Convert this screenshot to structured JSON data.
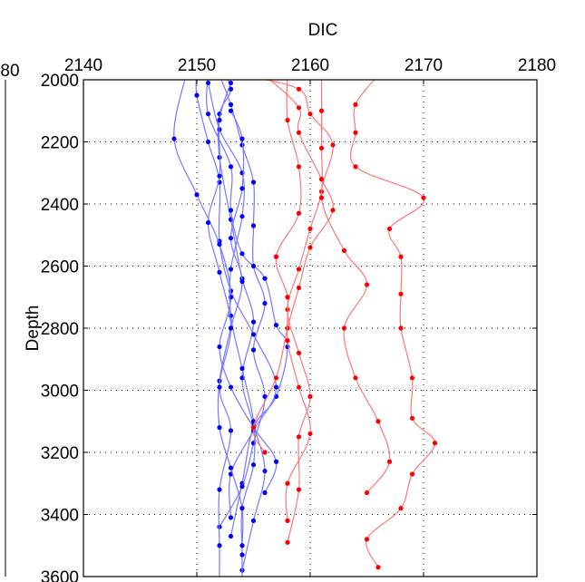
{
  "chart_data": {
    "type": "line",
    "title": "DIC",
    "xlabel": "DIC",
    "ylabel": "Depth",
    "x_axis_position": "top",
    "y_axis_reversed": true,
    "xlim": [
      2140,
      2180
    ],
    "ylim": [
      2000,
      3600
    ],
    "xticks": [
      2140,
      2150,
      2160,
      2170,
      2180
    ],
    "yticks": [
      2000,
      2200,
      2400,
      2600,
      2800,
      3000,
      3200,
      3400,
      3600
    ],
    "partial_left_tick_text": "80",
    "grid": "dotted",
    "colors": {
      "blue_series": "#0000ff",
      "blue_line": "#7777ff",
      "red_series": "#ff0000",
      "red_line": "#ff7777"
    },
    "series": [
      {
        "color_key": "blue",
        "points": [
          [
            2152,
            1960
          ],
          [
            2153,
            2030
          ],
          [
            2152,
            2110
          ],
          [
            2152,
            2250
          ],
          [
            2153,
            2450
          ],
          [
            2154,
            2640
          ],
          [
            2155,
            2780
          ],
          [
            2154,
            2960
          ],
          [
            2155,
            3110
          ],
          [
            2156,
            3260
          ],
          [
            2155,
            3420
          ],
          [
            2154,
            3580
          ]
        ]
      },
      {
        "color_key": "blue",
        "points": [
          [
            2151,
            1980
          ],
          [
            2151,
            2110
          ],
          [
            2153,
            2280
          ],
          [
            2153,
            2420
          ],
          [
            2154,
            2560
          ],
          [
            2156,
            2640
          ],
          [
            2157,
            2790
          ],
          [
            2158,
            2860
          ],
          [
            2157,
            3020
          ],
          [
            2155,
            3120
          ],
          [
            2154,
            3300
          ],
          [
            2153,
            3470
          ]
        ]
      },
      {
        "color_key": "blue",
        "points": [
          [
            2150,
            1980
          ],
          [
            2150,
            2050
          ],
          [
            2151,
            2200
          ],
          [
            2152,
            2330
          ],
          [
            2152,
            2520
          ],
          [
            2153,
            2680
          ],
          [
            2155,
            2820
          ],
          [
            2157,
            2990
          ],
          [
            2155,
            3130
          ],
          [
            2153,
            3270
          ],
          [
            2153,
            3410
          ]
        ]
      },
      {
        "color_key": "blue",
        "points": [
          [
            2149,
            1990
          ],
          [
            2148,
            2190
          ],
          [
            2150,
            2370
          ],
          [
            2152,
            2530
          ],
          [
            2153,
            2700
          ],
          [
            2152,
            2860
          ],
          [
            2153,
            2990
          ],
          [
            2155,
            3120
          ],
          [
            2157,
            3230
          ],
          [
            2156,
            3330
          ]
        ]
      },
      {
        "color_key": "blue",
        "points": [
          [
            2152,
            1985
          ],
          [
            2153,
            2080
          ],
          [
            2154,
            2210
          ],
          [
            2155,
            2330
          ],
          [
            2155,
            2470
          ],
          [
            2155,
            2600
          ],
          [
            2156,
            2720
          ],
          [
            2155,
            2870
          ],
          [
            2156,
            3020
          ],
          [
            2155,
            3170
          ],
          [
            2154,
            3310
          ],
          [
            2152,
            3440
          ]
        ]
      },
      {
        "color_key": "blue",
        "points": [
          [
            2151,
            2010
          ],
          [
            2152,
            2160
          ],
          [
            2154,
            2300
          ],
          [
            2154,
            2440
          ],
          [
            2153,
            2610
          ],
          [
            2153,
            2760
          ],
          [
            2154,
            2930
          ],
          [
            2155,
            3100
          ],
          [
            2155,
            3240
          ],
          [
            2154,
            3380
          ],
          [
            2154,
            3530
          ],
          [
            2154,
            3610
          ]
        ]
      },
      {
        "color_key": "blue",
        "points": [
          [
            2153,
            2100
          ],
          [
            2154,
            2190
          ],
          [
            2154,
            2350
          ],
          [
            2153,
            2510
          ],
          [
            2154,
            2650
          ],
          [
            2153,
            2800
          ],
          [
            2152,
            2970
          ],
          [
            2152,
            3120
          ],
          [
            2153,
            3250
          ],
          [
            2154,
            3380
          ],
          [
            2154,
            3500
          ]
        ]
      },
      {
        "color_key": "blue",
        "points": [
          [
            2153,
            2010
          ],
          [
            2152,
            2130
          ],
          [
            2152,
            2310
          ],
          [
            2151,
            2460
          ],
          [
            2152,
            2620
          ],
          [
            2153,
            2800
          ],
          [
            2152,
            2990
          ],
          [
            2153,
            3130
          ],
          [
            2152,
            3320
          ],
          [
            2152,
            3500
          ],
          [
            2152,
            3620
          ]
        ]
      },
      {
        "color_key": "red",
        "points": [
          [
            2161,
            1990
          ],
          [
            2161,
            2100
          ],
          [
            2161,
            2220
          ],
          [
            2161,
            2360
          ],
          [
            2160,
            2480
          ],
          [
            2159,
            2610
          ],
          [
            2158,
            2740
          ],
          [
            2159,
            2880
          ],
          [
            2160,
            3020
          ],
          [
            2159,
            3150
          ],
          [
            2159,
            3320
          ],
          [
            2158,
            3490
          ]
        ]
      },
      {
        "color_key": "red",
        "points": [
          [
            2156,
            1985
          ],
          [
            2159,
            2090
          ],
          [
            2159,
            2170
          ],
          [
            2161,
            2320
          ],
          [
            2162,
            2420
          ],
          [
            2160,
            2540
          ],
          [
            2159,
            2670
          ],
          [
            2158,
            2800
          ],
          [
            2157,
            2960
          ],
          [
            2155,
            3120
          ],
          [
            2156,
            3200
          ]
        ]
      },
      {
        "color_key": "red",
        "points": [
          [
            2166,
            1985
          ],
          [
            2164,
            2080
          ],
          [
            2164,
            2170
          ],
          [
            2164,
            2280
          ],
          [
            2170,
            2380
          ],
          [
            2167,
            2480
          ],
          [
            2168,
            2570
          ],
          [
            2168,
            2690
          ],
          [
            2168,
            2800
          ],
          [
            2169,
            2960
          ],
          [
            2169,
            3090
          ],
          [
            2171,
            3170
          ],
          [
            2169,
            3270
          ],
          [
            2168,
            3380
          ],
          [
            2165,
            3480
          ],
          [
            2166,
            3570
          ]
        ]
      },
      {
        "color_key": "red",
        "points": [
          [
            2154,
            1985
          ],
          [
            2159,
            2030
          ],
          [
            2160,
            2110
          ],
          [
            2162,
            2210
          ],
          [
            2161,
            2380
          ],
          [
            2163,
            2550
          ],
          [
            2165,
            2660
          ],
          [
            2163,
            2800
          ],
          [
            2164,
            2960
          ],
          [
            2166,
            3100
          ],
          [
            2167,
            3230
          ],
          [
            2165,
            3330
          ]
        ]
      },
      {
        "color_key": "red",
        "points": [
          [
            2158,
            1980
          ],
          [
            2158,
            2130
          ],
          [
            2159,
            2280
          ],
          [
            2159,
            2430
          ],
          [
            2157,
            2570
          ],
          [
            2158,
            2700
          ],
          [
            2158,
            2840
          ],
          [
            2159,
            2990
          ],
          [
            2160,
            3140
          ],
          [
            2158,
            3300
          ],
          [
            2158,
            3420
          ]
        ]
      }
    ]
  }
}
